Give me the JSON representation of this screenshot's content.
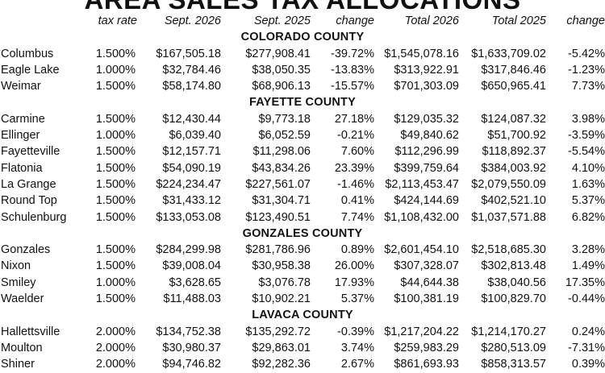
{
  "title": "AREA SALES TAX ALLOCATIONS",
  "columns": [
    "",
    "tax rate",
    "Sept. 2026",
    "Sept. 2025",
    "change",
    "Total 2026",
    "Total 2025",
    "change"
  ],
  "groups": [
    {
      "county": "COLORADO COUNTY",
      "rows": [
        [
          "Columbus",
          "1.500%",
          "$167,505.18",
          "$277,908.41",
          "-39.72%",
          "$1,545,078.16",
          "$1,633,709.02",
          "-5.42%"
        ],
        [
          "Eagle Lake",
          "1.000%",
          "$32,784.46",
          "$38,050.35",
          "-13.83%",
          "$313,922.91",
          "$317,846.46",
          "-1.23%"
        ],
        [
          "Weimar",
          "1.500%",
          "$58,174.80",
          "$68,906.13",
          "-15.57%",
          "$701,303.09",
          "$650,965.41",
          "7.73%"
        ]
      ]
    },
    {
      "county": "FAYETTE COUNTY",
      "rows": [
        [
          "Carmine",
          "1.500%",
          "$12,430.44",
          "$9,773.18",
          "27.18%",
          "$129,035.32",
          "$124,087.32",
          "3.98%"
        ],
        [
          "Ellinger",
          "1.000%",
          "$6,039.40",
          "$6,052.59",
          "-0.21%",
          "$49,840.62",
          "$51,700.92",
          "-3.59%"
        ],
        [
          "Fayetteville",
          "1.500%",
          "$12,157.71",
          "$11,298.06",
          "7.60%",
          "$112,296.99",
          "$118,892.37",
          "-5.54%"
        ],
        [
          "Flatonia",
          "1.500%",
          "$54,090.19",
          "$43,834.26",
          "23.39%",
          "$399,759.64",
          "$384,003.92",
          "4.10%"
        ],
        [
          "La Grange",
          "1.500%",
          "$224,234.47",
          "$227,561.07",
          "-1.46%",
          "$2,113,453.47",
          "$2,079,550.09",
          "1.63%"
        ],
        [
          "Round Top",
          "1.500%",
          "$31,433.12",
          "$31,304.71",
          "0.41%",
          "$424,144.69",
          "$402,521.10",
          "5.37%"
        ],
        [
          "Schulenburg",
          "1.500%",
          "$133,053.08",
          "$123,490.51",
          "7.74%",
          "$1,108,432.00",
          "$1,037,571.88",
          "6.82%"
        ]
      ]
    },
    {
      "county": "GONZALES COUNTY",
      "rows": [
        [
          "Gonzales",
          "1.500%",
          "$284,299.98",
          "$281,786.96",
          "0.89%",
          "$2,601,454.10",
          "$2,518,685.30",
          "3.28%"
        ],
        [
          "Nixon",
          "1.500%",
          "$39,008.04",
          "$30,958.38",
          "26.00%",
          "$307,328.07",
          "$302,813.48",
          "1.49%"
        ],
        [
          "Smiley",
          "1.000%",
          "$3,628.65",
          "$3,076.78",
          "17.93%",
          "$44,644.38",
          "$38,040.56",
          "17.35%"
        ],
        [
          "Waelder",
          "1.500%",
          "$11,488.03",
          "$10,902.21",
          "5.37%",
          "$100,381.19",
          "$100,829.70",
          "-0.44%"
        ]
      ]
    },
    {
      "county": "LAVACA COUNTY",
      "rows": [
        [
          "Hallettsville",
          "2.000%",
          "$134,752.38",
          "$135,292.72",
          "-0.39%",
          "$1,217,204.22",
          "$1,214,170.27",
          "0.24%"
        ],
        [
          "Moulton",
          "2.000%",
          "$30,980.37",
          "$29,863.01",
          "3.74%",
          "$259,983.29",
          "$280,513.09",
          "-7.31%"
        ],
        [
          "Shiner",
          "2.000%",
          "$94,746.82",
          "$92,282.36",
          "2.67%",
          "$861,693.93",
          "$858,313.57",
          "0.39%"
        ]
      ]
    }
  ]
}
